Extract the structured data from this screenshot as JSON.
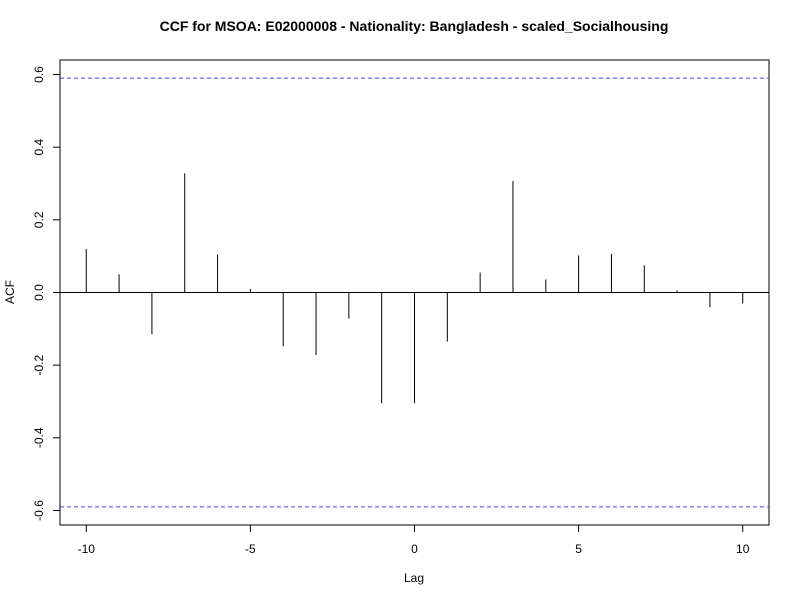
{
  "chart_data": {
    "type": "bar",
    "title": "CCF for MSOA: E02000008 - Nationality: Bangladesh - scaled_Socialhousing",
    "xlabel": "Lag",
    "ylabel": "ACF",
    "xlim": [
      -10.8,
      10.8
    ],
    "ylim": [
      -0.64,
      0.64
    ],
    "x_ticks": [
      -10,
      -5,
      0,
      5,
      10
    ],
    "x_tick_labels": [
      "-10",
      "-5",
      "0",
      "5",
      "10"
    ],
    "y_ticks": [
      -0.6,
      -0.4,
      -0.2,
      0.0,
      0.2,
      0.4,
      0.6
    ],
    "y_tick_labels": [
      "-0.6",
      "-0.4",
      "-0.2",
      "0.0",
      "0.2",
      "0.4",
      "0.6"
    ],
    "lags": [
      -10,
      -9,
      -8,
      -7,
      -6,
      -5,
      -4,
      -3,
      -2,
      -1,
      0,
      1,
      2,
      3,
      4,
      5,
      6,
      7,
      8,
      9,
      10
    ],
    "values": [
      0.12,
      0.05,
      -0.115,
      0.328,
      0.105,
      0.01,
      -0.148,
      -0.172,
      -0.072,
      -0.305,
      -0.305,
      -0.135,
      0.055,
      0.307,
      0.036,
      0.102,
      0.106,
      0.075,
      0.006,
      -0.04,
      -0.03
    ],
    "confidence_bounds": [
      0.59,
      -0.59
    ],
    "confidence_color": "#4444ee",
    "grid": false
  }
}
